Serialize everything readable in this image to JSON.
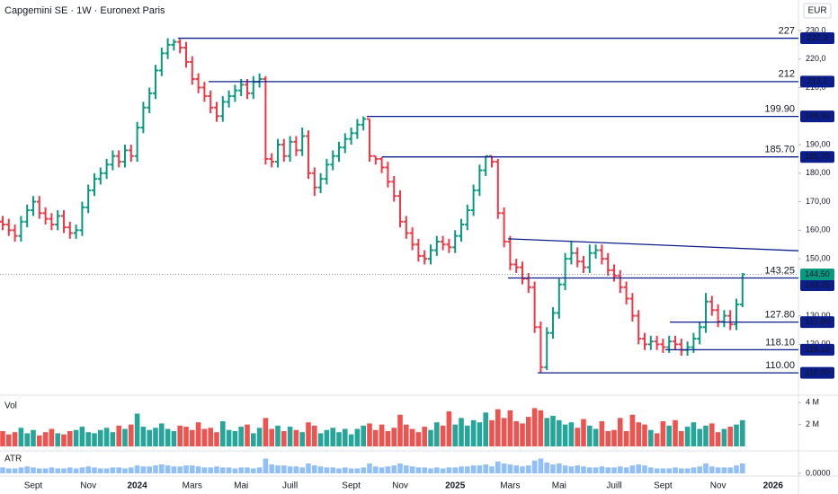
{
  "chart_data": {
    "type": "ohlc",
    "title": "Capgemini SE · 1W · Euronext Paris",
    "currency": "EUR",
    "xlim": [
      0,
      130
    ],
    "xticks": [
      {
        "value": 5,
        "label": "Sept"
      },
      {
        "value": 14,
        "label": "Nov"
      },
      {
        "value": 22,
        "label": "2024"
      },
      {
        "value": 31,
        "label": "Mars"
      },
      {
        "value": 39,
        "label": "Mai"
      },
      {
        "value": 47,
        "label": "Juill"
      },
      {
        "value": 57,
        "label": "Sept"
      },
      {
        "value": 65,
        "label": "Nov"
      },
      {
        "value": 74,
        "label": "2025"
      },
      {
        "value": 83,
        "label": "Mars"
      },
      {
        "value": 91,
        "label": "Mai"
      },
      {
        "value": 100,
        "label": "Juill"
      },
      {
        "value": 108,
        "label": "Sept"
      },
      {
        "value": 117,
        "label": "Nov"
      },
      {
        "value": 126,
        "label": "2026"
      }
    ],
    "ylim": [
      102.8,
      240.7
    ],
    "yticks": [
      {
        "value": 230,
        "label": "230,0"
      },
      {
        "value": 220,
        "label": "220,0"
      },
      {
        "value": 210,
        "label": "210,0"
      },
      {
        "value": 190,
        "label": "190,00"
      },
      {
        "value": 180,
        "label": "180,00"
      },
      {
        "value": 170,
        "label": "170,00"
      },
      {
        "value": 160,
        "label": "160,00"
      },
      {
        "value": 150,
        "label": "150,00"
      },
      {
        "value": 130,
        "label": "130,00"
      },
      {
        "value": 120,
        "label": "120,00"
      }
    ],
    "up_color": "#089981",
    "down_color": "#f23645",
    "open": [
      163,
      162,
      160,
      158,
      163,
      167,
      170,
      166,
      164,
      162,
      165,
      161,
      159,
      160,
      168,
      174,
      178,
      180,
      183,
      186,
      184,
      188,
      186,
      196,
      203,
      208,
      216,
      222,
      225,
      226,
      224,
      219,
      213,
      210,
      207,
      203,
      200,
      205,
      207,
      209,
      211,
      208,
      212,
      213,
      185,
      184,
      190,
      186,
      191,
      188,
      193,
      180,
      175,
      178,
      183,
      186,
      189,
      192,
      194,
      197,
      199,
      186,
      185,
      182,
      177,
      172,
      163,
      159,
      155,
      151,
      150,
      153,
      156,
      155,
      154,
      158,
      162,
      167,
      174,
      181,
      186,
      184,
      166,
      156,
      148,
      147,
      143,
      140,
      126,
      112,
      124,
      131,
      141,
      150,
      152,
      149,
      147,
      152,
      153,
      150,
      146,
      144,
      140,
      136,
      130,
      122,
      120,
      121,
      120,
      119,
      121,
      120,
      118,
      119,
      122,
      126,
      135,
      132,
      128,
      130,
      127,
      134
    ],
    "high": [
      165,
      164,
      162,
      165,
      169,
      172,
      172,
      168,
      166,
      167,
      167,
      163,
      162,
      170,
      176,
      180,
      182,
      185,
      188,
      188,
      190,
      190,
      198,
      205,
      210,
      218,
      224,
      227.3,
      227,
      227,
      226,
      221,
      215,
      212,
      209,
      205,
      207,
      209,
      211,
      213,
      213,
      214,
      215,
      214,
      187,
      192,
      192,
      193,
      193,
      196,
      195,
      182,
      180,
      185,
      188,
      191,
      194,
      196,
      199,
      199.9,
      199,
      186,
      185.7,
      184,
      179,
      174,
      165,
      161,
      157,
      153,
      155,
      158,
      158,
      157,
      160,
      164,
      169,
      176,
      183,
      186,
      186,
      185,
      168,
      158,
      150,
      149,
      145,
      142,
      128,
      126,
      133,
      143,
      152,
      156,
      154,
      151,
      155,
      155,
      155,
      152,
      148,
      146,
      142,
      138,
      132,
      124,
      123,
      123,
      122,
      123,
      123,
      122,
      121,
      124,
      128,
      138,
      137,
      134,
      132,
      132,
      136,
      145
    ],
    "low": [
      160,
      158,
      156,
      156,
      161,
      165,
      164,
      162,
      160,
      160,
      159,
      157,
      157,
      158,
      166,
      172,
      176,
      178,
      181,
      182,
      182,
      184,
      184,
      194,
      201,
      206,
      214,
      220,
      223,
      222,
      217,
      211,
      208,
      205,
      201,
      198,
      198,
      203,
      205,
      207,
      206,
      206,
      210,
      183,
      182,
      182,
      184,
      184,
      186,
      186,
      178,
      172,
      173,
      176,
      181,
      184,
      187,
      190,
      192,
      195,
      184,
      183,
      180,
      175,
      170,
      161,
      157,
      153,
      149,
      148,
      148,
      151,
      153,
      152,
      152,
      156,
      160,
      165,
      172,
      179,
      182,
      164,
      154,
      146,
      145,
      141,
      138,
      124,
      110,
      111,
      122,
      129,
      139,
      148,
      147,
      145,
      145,
      150,
      148,
      144,
      142,
      138,
      134,
      128,
      120,
      118,
      118,
      118,
      117,
      117,
      118,
      116,
      116,
      117,
      120,
      124,
      130,
      126,
      126,
      125,
      125,
      133
    ],
    "close": [
      162,
      160,
      158,
      163,
      167,
      170,
      166,
      164,
      162,
      165,
      161,
      159,
      160,
      168,
      174,
      178,
      180,
      183,
      186,
      184,
      188,
      186,
      196,
      203,
      208,
      216,
      222,
      225,
      226,
      224,
      219,
      213,
      210,
      207,
      203,
      200,
      205,
      207,
      209,
      211,
      208,
      212,
      213,
      185,
      184,
      190,
      186,
      191,
      188,
      193,
      180,
      175,
      178,
      183,
      186,
      189,
      192,
      194,
      197,
      199,
      186,
      185,
      182,
      177,
      172,
      163,
      159,
      155,
      151,
      150,
      153,
      156,
      155,
      154,
      158,
      162,
      167,
      174,
      181,
      186,
      184,
      166,
      156,
      148,
      147,
      143,
      140,
      126,
      112,
      124,
      131,
      141,
      150,
      152,
      149,
      147,
      152,
      153,
      150,
      146,
      144,
      140,
      136,
      130,
      122,
      120,
      121,
      120,
      119,
      121,
      120,
      118,
      119,
      122,
      126,
      135,
      132,
      128,
      130,
      127,
      134,
      144.5
    ],
    "last_price_label": "144,50",
    "level_color": "#0c1e8c",
    "levels": [
      {
        "value": 227.3,
        "text": "227",
        "label": "227,3"
      },
      {
        "value": 212.1,
        "text": "212",
        "label": "212,1"
      },
      {
        "value": 199.9,
        "text": "199.90",
        "label": "199,90"
      },
      {
        "value": 185.7,
        "text": "185.70",
        "label": "185,70"
      },
      {
        "value": 143.25,
        "text": "143.25",
        "label": "143,25"
      },
      {
        "value": 127.8,
        "text": "127.80",
        "label": "127,80"
      },
      {
        "value": 118.1,
        "text": "118.10",
        "label": "118,10"
      },
      {
        "value": 110,
        "text": "110.00",
        "label": "110,00"
      }
    ],
    "trendline": [
      157,
      152.8
    ],
    "volume": {
      "name": "Vol",
      "ylim": [
        0,
        4.6
      ],
      "yticks": [
        {
          "value": 2,
          "label": "2 M"
        },
        {
          "value": 4,
          "label": "4 M"
        }
      ],
      "up_color": "#26a69a",
      "down_color": "#ef5350",
      "values": [
        1.4,
        1.1,
        1.3,
        1.7,
        1.2,
        1.5,
        1.0,
        1.3,
        1.6,
        1.2,
        1.1,
        1.4,
        1.5,
        1.8,
        1.3,
        1.2,
        1.5,
        1.7,
        1.3,
        1.9,
        1.6,
        2.0,
        3.0,
        1.8,
        1.5,
        1.7,
        2.1,
        1.6,
        1.4,
        1.9,
        1.8,
        1.5,
        2.2,
        1.6,
        1.7,
        1.3,
        2.3,
        1.5,
        1.4,
        1.8,
        2.0,
        1.2,
        1.7,
        2.6,
        1.6,
        1.9,
        1.4,
        1.8,
        1.5,
        1.3,
        2.2,
        1.9,
        1.2,
        1.5,
        1.7,
        1.3,
        1.6,
        1.1,
        1.6,
        1.9,
        2.1,
        1.5,
        2.0,
        1.4,
        1.7,
        2.9,
        2.0,
        1.6,
        1.3,
        1.8,
        1.5,
        2.2,
        1.9,
        3.2,
        2.0,
        2.6,
        1.9,
        2.4,
        2.2,
        3.1,
        2.4,
        3.4,
        2.6,
        3.3,
        2.3,
        2.1,
        2.7,
        3.5,
        3.3,
        2.6,
        2.8,
        2.4,
        2.0,
        2.2,
        1.7,
        2.5,
        1.9,
        1.6,
        2.3,
        1.4,
        1.5,
        2.6,
        1.4,
        2.9,
        2.2,
        2.0,
        1.5,
        1.2,
        2.3,
        1.9,
        2.4,
        1.4,
        1.8,
        2.2,
        1.6,
        1.9,
        2.1,
        1.3,
        1.6,
        1.8,
        2.0,
        2.4
      ]
    },
    "atr": {
      "name": "ATR",
      "ylim": [
        0,
        20
      ],
      "yticks": [
        {
          "value": 0,
          "label": "0.0000"
        }
      ],
      "color": "#90bff9",
      "values": [
        6,
        5,
        5,
        6,
        7,
        6,
        5,
        5,
        6,
        5,
        5,
        6,
        5,
        6,
        7,
        6,
        5,
        5,
        6,
        6,
        5,
        6,
        8,
        7,
        7,
        8,
        9,
        8,
        7,
        7,
        8,
        8,
        7,
        6,
        6,
        7,
        6,
        6,
        5,
        6,
        6,
        5,
        6,
        15,
        9,
        8,
        8,
        7,
        7,
        6,
        10,
        8,
        7,
        6,
        6,
        5,
        6,
        5,
        5,
        6,
        10,
        7,
        6,
        7,
        8,
        10,
        8,
        7,
        6,
        6,
        5,
        6,
        5,
        6,
        6,
        7,
        7,
        8,
        8,
        9,
        7,
        12,
        10,
        9,
        8,
        7,
        8,
        13,
        15,
        11,
        9,
        10,
        8,
        7,
        8,
        7,
        6,
        6,
        7,
        6,
        6,
        7,
        6,
        8,
        9,
        8,
        6,
        5,
        5,
        5,
        6,
        5,
        5,
        6,
        7,
        10,
        7,
        6,
        6,
        6,
        8,
        10
      ]
    }
  }
}
